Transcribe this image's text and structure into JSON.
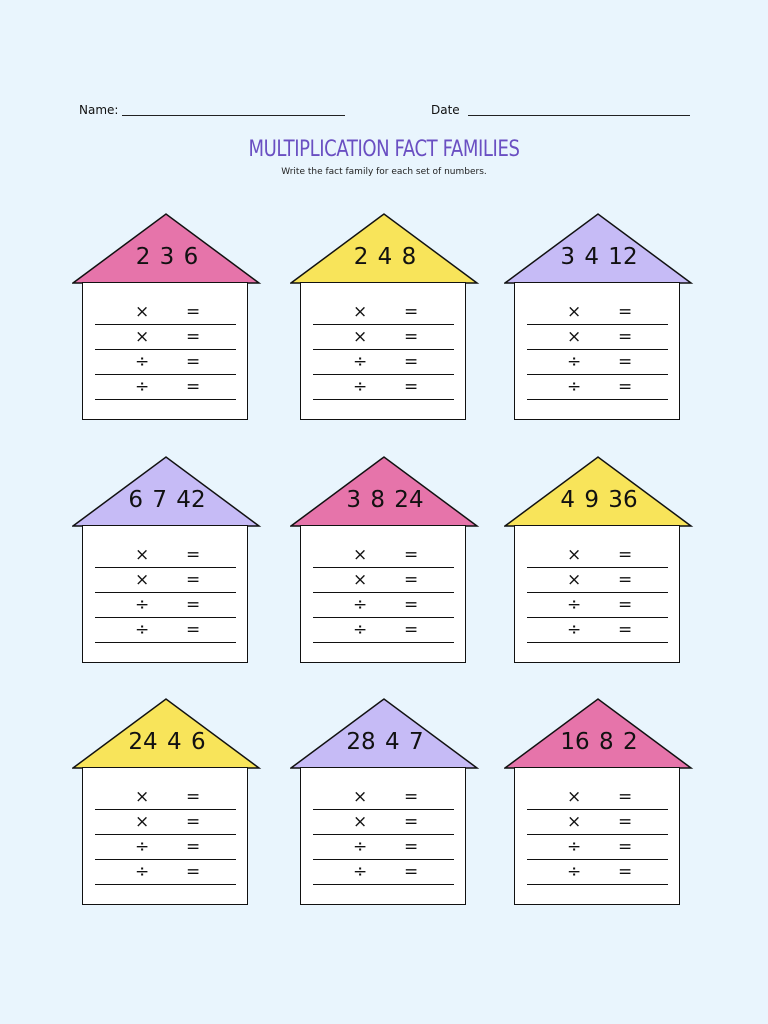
{
  "header": {
    "name_label": "Name:",
    "date_label": "Date"
  },
  "title": "MULTIPLICATION FACT FAMILIES",
  "subtitle": "Write the fact family for each set of numbers.",
  "colors": {
    "pink": "#e674aa",
    "yellow": "#f8e45a",
    "lavender": "#c6bbf6",
    "title": "#6a4fc2"
  },
  "houses": [
    {
      "numbers": "2 3 6",
      "roof_color": "pink"
    },
    {
      "numbers": "2 4 8",
      "roof_color": "yellow"
    },
    {
      "numbers": "3 4 12",
      "roof_color": "lavender"
    },
    {
      "numbers": "6 7 42",
      "roof_color": "lavender"
    },
    {
      "numbers": "3 8 24",
      "roof_color": "pink"
    },
    {
      "numbers": "4 9 36",
      "roof_color": "yellow"
    },
    {
      "numbers": "24 4 6",
      "roof_color": "yellow"
    },
    {
      "numbers": "28 4 7",
      "roof_color": "lavender"
    },
    {
      "numbers": "16 8 2",
      "roof_color": "pink"
    }
  ],
  "rows": [
    {
      "op": "×",
      "eq": "="
    },
    {
      "op": "×",
      "eq": "="
    },
    {
      "op": "÷",
      "eq": "="
    },
    {
      "op": "÷",
      "eq": "="
    }
  ]
}
